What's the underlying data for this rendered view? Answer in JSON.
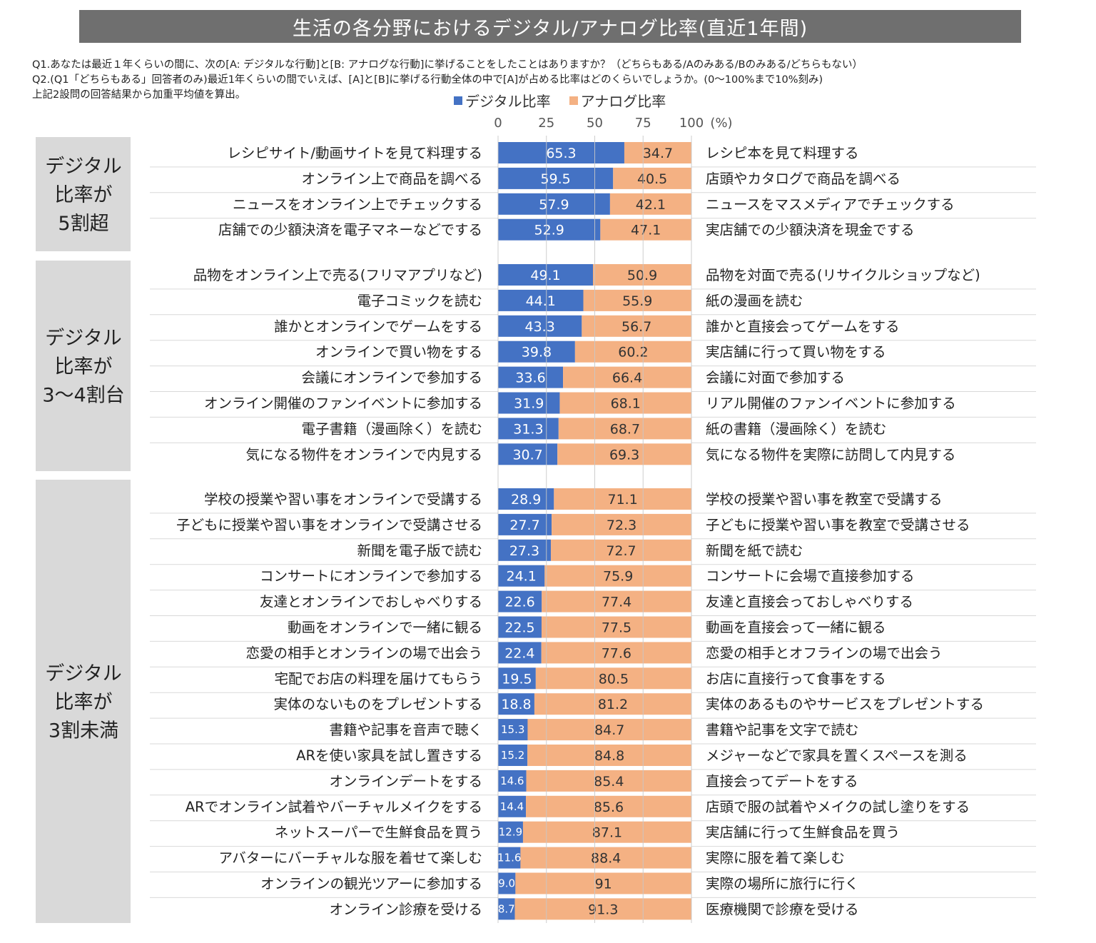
{
  "title": "生活の各分野におけるデジタル/アナログ比率(直近1年間)",
  "notes": [
    "Q1.あなたは最近１年くらいの間に、次の[A: デジタルな行動]と[B: アナログな行動]に挙げることをしたことはありますか？（どちらもある/Aのみある/Bのみある/どちらもない）",
    "Q2.(Q1「どちらもある」回答者のみ)最近1年くらいの間でいえば、[A]と[B]に挙げる行動全体の中で[A]が占める比率はどのくらいでしょうか。(0～100%まで10%刻み)",
    "上記2設問の回答結果から加重平均値を算出。"
  ],
  "colors": {
    "digital": "#4472c4",
    "analog": "#f4b183",
    "group_bg": "#d9d9d9",
    "title_bg": "#6f6f6f"
  },
  "chart_data": {
    "type": "bar",
    "orientation": "horizontal-stacked-100",
    "title": "生活の各分野におけるデジタル/アナログ比率(直近1年間)",
    "axis_unit": "(%)",
    "xlim": [
      0,
      100
    ],
    "ticks": [
      "0",
      "25",
      "50",
      "75",
      "100"
    ],
    "legend": [
      "デジタル比率",
      "アナログ比率"
    ],
    "series_names": {
      "digital": "デジタル比率",
      "analog": "アナログ比率"
    },
    "groups": [
      {
        "label": [
          "デジタル",
          "比率が",
          "5割超"
        ],
        "rows": [
          {
            "digital_label": "レシピサイト/動画サイトを見て料理する",
            "analog_label": "レシピ本を見て料理する",
            "digital": 65.3,
            "analog": 34.7,
            "digital_text": "65.3",
            "analog_text": "34.7"
          },
          {
            "digital_label": "オンライン上で商品を調べる",
            "analog_label": "店頭やカタログで商品を調べる",
            "digital": 59.5,
            "analog": 40.5,
            "digital_text": "59.5",
            "analog_text": "40.5"
          },
          {
            "digital_label": "ニュースをオンライン上でチェックする",
            "analog_label": "ニュースをマスメディアでチェックする",
            "digital": 57.9,
            "analog": 42.1,
            "digital_text": "57.9",
            "analog_text": "42.1"
          },
          {
            "digital_label": "店舗での少額決済を電子マネーなどでする",
            "analog_label": "実店舗での少額決済を現金でする",
            "digital": 52.9,
            "analog": 47.1,
            "digital_text": "52.9",
            "analog_text": "47.1"
          }
        ]
      },
      {
        "label": [
          "デジタル",
          "比率が",
          "3～4割台"
        ],
        "rows": [
          {
            "digital_label": "品物をオンライン上で売る(フリマアプリなど)",
            "analog_label": "品物を対面で売る(リサイクルショップなど)",
            "digital": 49.1,
            "analog": 50.9,
            "digital_text": "49.1",
            "analog_text": "50.9"
          },
          {
            "digital_label": "電子コミックを読む",
            "analog_label": "紙の漫画を読む",
            "digital": 44.1,
            "analog": 55.9,
            "digital_text": "44.1",
            "analog_text": "55.9"
          },
          {
            "digital_label": "誰かとオンラインでゲームをする",
            "analog_label": "誰かと直接会ってゲームをする",
            "digital": 43.3,
            "analog": 56.7,
            "digital_text": "43.3",
            "analog_text": "56.7"
          },
          {
            "digital_label": "オンラインで買い物をする",
            "analog_label": "実店舗に行って買い物をする",
            "digital": 39.8,
            "analog": 60.2,
            "digital_text": "39.8",
            "analog_text": "60.2"
          },
          {
            "digital_label": "会議にオンラインで参加する",
            "analog_label": "会議に対面で参加する",
            "digital": 33.6,
            "analog": 66.4,
            "digital_text": "33.6",
            "analog_text": "66.4"
          },
          {
            "digital_label": "オンライン開催のファンイベントに参加する",
            "analog_label": "リアル開催のファンイベントに参加する",
            "digital": 31.9,
            "analog": 68.1,
            "digital_text": "31.9",
            "analog_text": "68.1"
          },
          {
            "digital_label": "電子書籍（漫画除く）を読む",
            "analog_label": "紙の書籍（漫画除く）を読む",
            "digital": 31.3,
            "analog": 68.7,
            "digital_text": "31.3",
            "analog_text": "68.7"
          },
          {
            "digital_label": "気になる物件をオンラインで内見する",
            "analog_label": "気になる物件を実際に訪問して内見する",
            "digital": 30.7,
            "analog": 69.3,
            "digital_text": "30.7",
            "analog_text": "69.3"
          }
        ]
      },
      {
        "label": [
          "デジタル",
          "比率が",
          "3割未満"
        ],
        "rows": [
          {
            "digital_label": "学校の授業や習い事をオンラインで受講する",
            "analog_label": "学校の授業や習い事を教室で受講する",
            "digital": 28.9,
            "analog": 71.1,
            "digital_text": "28.9",
            "analog_text": "71.1"
          },
          {
            "digital_label": "子どもに授業や習い事をオンラインで受講させる",
            "analog_label": "子どもに授業や習い事を教室で受講させる",
            "digital": 27.7,
            "analog": 72.3,
            "digital_text": "27.7",
            "analog_text": "72.3"
          },
          {
            "digital_label": "新聞を電子版で読む",
            "analog_label": "新聞を紙で読む",
            "digital": 27.3,
            "analog": 72.7,
            "digital_text": "27.3",
            "analog_text": "72.7"
          },
          {
            "digital_label": "コンサートにオンラインで参加する",
            "analog_label": "コンサートに会場で直接参加する",
            "digital": 24.1,
            "analog": 75.9,
            "digital_text": "24.1",
            "analog_text": "75.9"
          },
          {
            "digital_label": "友達とオンラインでおしゃべりする",
            "analog_label": "友達と直接会っておしゃべりする",
            "digital": 22.6,
            "analog": 77.4,
            "digital_text": "22.6",
            "analog_text": "77.4"
          },
          {
            "digital_label": "動画をオンラインで一緒に観る",
            "analog_label": "動画を直接会って一緒に観る",
            "digital": 22.5,
            "analog": 77.5,
            "digital_text": "22.5",
            "analog_text": "77.5"
          },
          {
            "digital_label": "恋愛の相手とオンラインの場で出会う",
            "analog_label": "恋愛の相手とオフラインの場で出会う",
            "digital": 22.4,
            "analog": 77.6,
            "digital_text": "22.4",
            "analog_text": "77.6"
          },
          {
            "digital_label": "宅配でお店の料理を届けてもらう",
            "analog_label": "お店に直接行って食事をする",
            "digital": 19.5,
            "analog": 80.5,
            "digital_text": "19.5",
            "analog_text": "80.5"
          },
          {
            "digital_label": "実体のないものをプレゼントする",
            "analog_label": "実体のあるものやサービスをプレゼントする",
            "digital": 18.8,
            "analog": 81.2,
            "digital_text": "18.8",
            "analog_text": "81.2"
          },
          {
            "digital_label": "書籍や記事を音声で聴く",
            "analog_label": "書籍や記事を文字で読む",
            "digital": 15.3,
            "analog": 84.7,
            "digital_text": "15.3",
            "analog_text": "84.7"
          },
          {
            "digital_label": "ARを使い家具を試し置きする",
            "analog_label": "メジャーなどで家具を置くスペースを測る",
            "digital": 15.2,
            "analog": 84.8,
            "digital_text": "15.2",
            "analog_text": "84.8"
          },
          {
            "digital_label": "オンラインデートをする",
            "analog_label": "直接会ってデートをする",
            "digital": 14.6,
            "analog": 85.4,
            "digital_text": "14.6",
            "analog_text": "85.4"
          },
          {
            "digital_label": "ARでオンライン試着やバーチャルメイクをする",
            "analog_label": "店頭で服の試着やメイクの試し塗りをする",
            "digital": 14.4,
            "analog": 85.6,
            "digital_text": "14.4",
            "analog_text": "85.6"
          },
          {
            "digital_label": "ネットスーパーで生鮮食品を買う",
            "analog_label": "実店舗に行って生鮮食品を買う",
            "digital": 12.9,
            "analog": 87.1,
            "digital_text": "12.9",
            "analog_text": "87.1"
          },
          {
            "digital_label": "アバターにバーチャルな服を着せて楽しむ",
            "analog_label": "実際に服を着て楽しむ",
            "digital": 11.6,
            "analog": 88.4,
            "digital_text": "11.6",
            "analog_text": "88.4"
          },
          {
            "digital_label": "オンラインの観光ツアーに参加する",
            "analog_label": "実際の場所に旅行に行く",
            "digital": 9.0,
            "analog": 91.0,
            "digital_text": "9.0",
            "analog_text": "91"
          },
          {
            "digital_label": "オンライン診療を受ける",
            "analog_label": "医療機関で診療を受ける",
            "digital": 8.7,
            "analog": 91.3,
            "digital_text": "8.7",
            "analog_text": "91.3"
          }
        ]
      }
    ]
  }
}
